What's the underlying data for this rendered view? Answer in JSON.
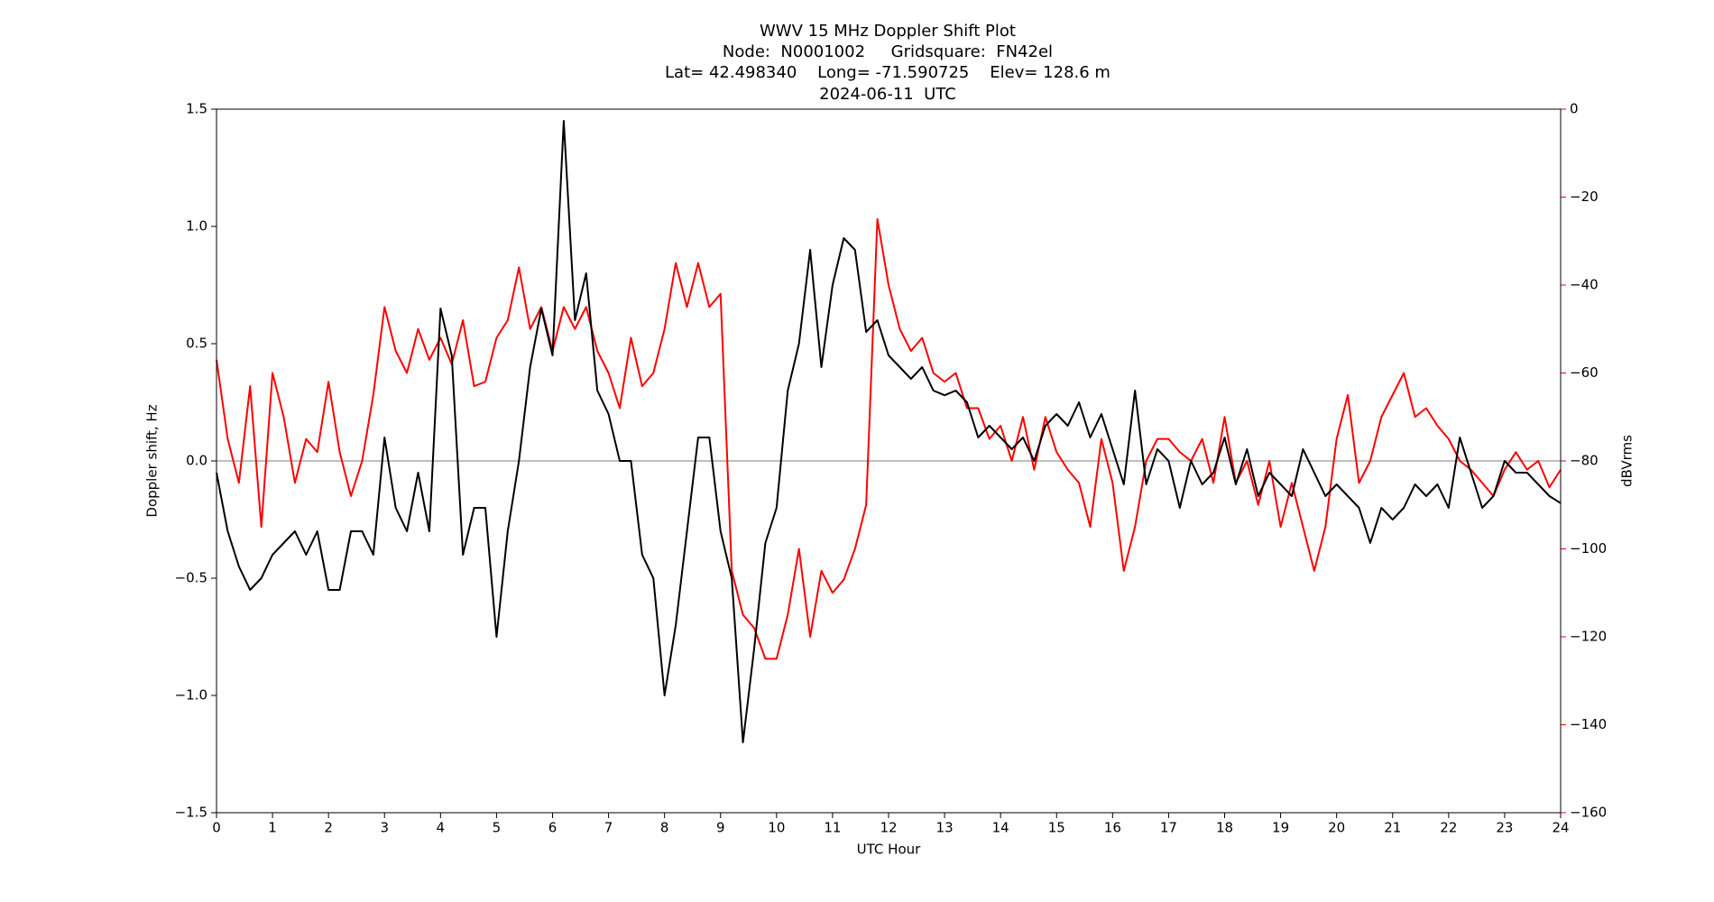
{
  "chart_data": {
    "type": "line",
    "title": [
      "WWV 15 MHz Doppler Shift Plot",
      "Node:  N0001002     Gridsquare:  FN42el",
      "Lat= 42.498340    Long= -71.590725    Elev= 128.6 m",
      "2024-06-11  UTC"
    ],
    "xlabel": "UTC Hour",
    "ylabel": "Doppler shift, Hz",
    "y2label": "dBVrms",
    "y2color": "#ff0000",
    "xlim": [
      0,
      24
    ],
    "xticks": [
      0,
      1,
      2,
      3,
      4,
      5,
      6,
      7,
      8,
      9,
      10,
      11,
      12,
      13,
      14,
      15,
      16,
      17,
      18,
      19,
      20,
      21,
      22,
      23,
      24
    ],
    "ylim": [
      -1.5,
      1.5
    ],
    "yticks": [
      {
        "value": -1.5,
        "label": "−1.5"
      },
      {
        "value": -1.0,
        "label": "−1.0"
      },
      {
        "value": -0.5,
        "label": "−0.5"
      },
      {
        "value": 0,
        "label": "0.0"
      },
      0.5,
      {
        "value": 1.0,
        "label": "1.0"
      },
      1.5
    ],
    "y2lim": [
      -160,
      0
    ],
    "y2ticks": [
      {
        "value": -160,
        "label": "−160"
      },
      {
        "value": -140,
        "label": "−140"
      },
      {
        "value": -120,
        "label": "−120"
      },
      {
        "value": -100,
        "label": "−100"
      },
      {
        "value": -80,
        "label": "−80"
      },
      {
        "value": -60,
        "label": "−60"
      },
      {
        "value": -40,
        "label": "−40"
      },
      {
        "value": -20,
        "label": "−20"
      },
      0
    ],
    "reference_line": 0,
    "x": [
      0,
      0.2,
      0.4,
      0.6,
      0.8,
      1,
      1.2,
      1.4,
      1.6,
      1.8,
      2,
      2.2,
      2.4,
      2.6,
      2.8,
      3,
      3.2,
      3.4,
      3.6,
      3.8,
      4,
      4.2,
      4.4,
      4.6,
      4.8,
      5,
      5.2,
      5.4,
      5.6,
      5.8,
      6,
      6.2,
      6.4,
      6.6,
      6.8,
      7,
      7.2,
      7.4,
      7.6,
      7.8,
      8,
      8.2,
      8.4,
      8.6,
      8.8,
      9,
      9.2,
      9.4,
      9.6,
      9.8,
      10,
      10.2,
      10.4,
      10.6,
      10.8,
      11,
      11.2,
      11.4,
      11.6,
      11.8,
      12,
      12.2,
      12.4,
      12.6,
      12.8,
      13,
      13.2,
      13.4,
      13.6,
      13.8,
      14,
      14.2,
      14.4,
      14.6,
      14.8,
      15,
      15.2,
      15.4,
      15.6,
      15.8,
      16,
      16.2,
      16.4,
      16.6,
      16.8,
      17,
      17.2,
      17.4,
      17.6,
      17.8,
      18,
      18.2,
      18.4,
      18.6,
      18.8,
      19,
      19.2,
      19.4,
      19.6,
      19.8,
      20,
      20.2,
      20.4,
      20.6,
      20.8,
      21,
      21.2,
      21.4,
      21.6,
      21.8,
      22,
      22.2,
      22.4,
      22.6,
      22.8,
      23,
      23.2,
      23.4,
      23.6,
      23.8,
      24
    ],
    "series": [
      {
        "color": "#000000",
        "values": [
          -0.05,
          -0.3,
          -0.45,
          -0.55,
          -0.5,
          -0.4,
          -0.35,
          -0.3,
          -0.4,
          -0.3,
          -0.55,
          -0.55,
          -0.3,
          -0.3,
          -0.4,
          0.1,
          -0.2,
          -0.3,
          -0.05,
          -0.3,
          0.65,
          0.45,
          -0.4,
          -0.2,
          -0.2,
          -0.75,
          -0.3,
          0.0,
          0.4,
          0.65,
          0.45,
          1.45,
          0.6,
          0.8,
          0.3,
          0.2,
          0.0,
          0.0,
          -0.4,
          -0.5,
          -1.0,
          -0.7,
          -0.3,
          0.1,
          0.1,
          -0.3,
          -0.5,
          -1.2,
          -0.8,
          -0.35,
          -0.2,
          0.3,
          0.5,
          0.9,
          0.4,
          0.75,
          0.95,
          0.9,
          0.55,
          0.6,
          0.45,
          0.4,
          0.35,
          0.4,
          0.3,
          0.28,
          0.3,
          0.25,
          0.1,
          0.15,
          0.1,
          0.05,
          0.1,
          0.0,
          0.15,
          0.2,
          0.15,
          0.25,
          0.1,
          0.2,
          0.05,
          -0.1,
          0.3,
          -0.1,
          0.05,
          0.0,
          -0.2,
          0.0,
          -0.1,
          -0.05,
          0.1,
          -0.1,
          0.05,
          -0.15,
          -0.05,
          -0.1,
          -0.15,
          0.05,
          -0.05,
          -0.15,
          -0.1,
          -0.15,
          -0.2,
          -0.35,
          -0.2,
          -0.25,
          -0.2,
          -0.1,
          -0.15,
          -0.1,
          -0.2,
          0.1,
          -0.05,
          -0.2,
          -0.15,
          0.0,
          -0.05,
          -0.05,
          -0.1,
          -0.15,
          -0.18
        ]
      },
      {
        "color": "#ff0000",
        "axis": "y2",
        "values": [
          -57,
          -75,
          -85,
          -63,
          -95,
          -60,
          -70,
          -85,
          -75,
          -78,
          -62,
          -78,
          -88,
          -80,
          -65,
          -45,
          -55,
          -60,
          -50,
          -57,
          -52,
          -58,
          -48,
          -63,
          -62,
          -52,
          -48,
          -36,
          -50,
          -45,
          -55,
          -45,
          -50,
          -45,
          -55,
          -60,
          -68,
          -52,
          -63,
          -60,
          -50,
          -35,
          -45,
          -35,
          -45,
          -42,
          -105,
          -115,
          -118,
          -125,
          -125,
          -115,
          -100,
          -120,
          -105,
          -110,
          -107,
          -100,
          -90,
          -25,
          -40,
          -50,
          -55,
          -52,
          -60,
          -62,
          -60,
          -68,
          -68,
          -75,
          -72,
          -80,
          -70,
          -82,
          -70,
          -78,
          -82,
          -85,
          -95,
          -75,
          -85,
          -105,
          -95,
          -80,
          -75,
          -75,
          -78,
          -80,
          -75,
          -85,
          -70,
          -85,
          -80,
          -90,
          -80,
          -95,
          -85,
          -95,
          -105,
          -95,
          -75,
          -65,
          -85,
          -80,
          -70,
          -65,
          -60,
          -70,
          -68,
          -72,
          -75,
          -80,
          -82,
          -85,
          -88,
          -82,
          -78,
          -82,
          -80,
          -86,
          -82
        ]
      }
    ]
  }
}
